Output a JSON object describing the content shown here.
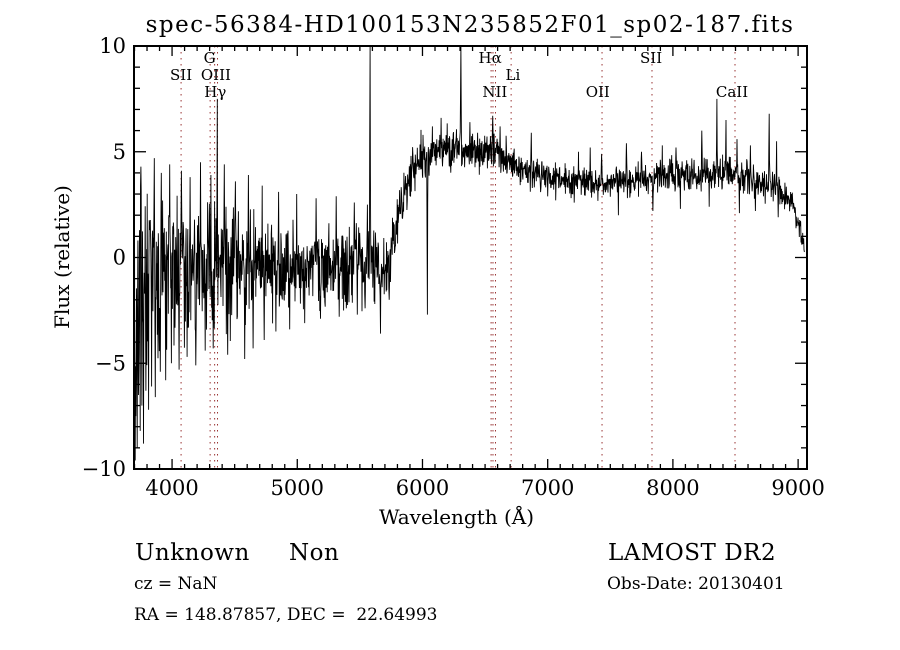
{
  "title": "spec-56384-HD100153N235852F01_sp02-187.fits",
  "footer": {
    "class": "Unknown",
    "subclass": "Non",
    "cz": "cz = NaN",
    "ra_dec": "RA = 148.87857, DEC =  22.64993",
    "survey": "LAMOST DR2",
    "obs_date": "Obs-Date: 20130401"
  },
  "chart_data": {
    "type": "line",
    "title": "spec-56384-HD100153N235852F01_sp02-187.fits",
    "xlabel": "Wavelength (Å)",
    "ylabel": "Flux (relative)",
    "xlim": [
      3696,
      9071
    ],
    "ylim": [
      -10,
      10
    ],
    "grid": false,
    "legend": "none",
    "x_ticks": [
      {
        "v": 4000,
        "label": "4000"
      },
      {
        "v": 5000,
        "label": "5000"
      },
      {
        "v": 6000,
        "label": "6000"
      },
      {
        "v": 7000,
        "label": "7000"
      },
      {
        "v": 8000,
        "label": "8000"
      },
      {
        "v": 9000,
        "label": "9000"
      }
    ],
    "y_ticks": [
      {
        "v": -10,
        "label": "−10"
      },
      {
        "v": -5,
        "label": "−5"
      },
      {
        "v": 0,
        "label": "0"
      },
      {
        "v": 5,
        "label": "5"
      },
      {
        "v": 10,
        "label": "10"
      }
    ],
    "x_minor_step": 100,
    "y_minor_step": 1,
    "trace_color": "#000000",
    "axis_color": "#000000",
    "marker_color": "#993333",
    "line_markers": [
      {
        "label": "SII",
        "row": 2,
        "label_wl": 4072,
        "lines": [
          4072
        ]
      },
      {
        "label": "G",
        "row": 1,
        "label_wl": 4300,
        "lines": [
          4304
        ]
      },
      {
        "label": "OIII",
        "row": 2,
        "label_wl": 4350,
        "lines": [
          4363
        ]
      },
      {
        "label": "Hγ",
        "row": 3,
        "label_wl": 4345,
        "lines": [
          4340
        ]
      },
      {
        "label": "Hα",
        "row": 1,
        "label_wl": 6540,
        "lines": [
          6548,
          6563
        ]
      },
      {
        "label": "NII",
        "row": 3,
        "label_wl": 6578,
        "lines": [
          6583
        ]
      },
      {
        "label": "Li",
        "row": 2,
        "label_wl": 6722,
        "lines": [
          6708
        ]
      },
      {
        "label": "OII",
        "row": 3,
        "label_wl": 7400,
        "lines": [
          7434
        ]
      },
      {
        "label": "SII",
        "row": 1,
        "label_wl": 7826,
        "lines": [
          7833
        ]
      },
      {
        "label": "CaII",
        "row": 3,
        "label_wl": 8472,
        "lines": [
          8496
        ]
      }
    ],
    "spectrum": {
      "start": 3700,
      "end": 9050,
      "samples": 2000,
      "seed": 20130401,
      "continuum": [
        [
          3700,
          0.0
        ],
        [
          4500,
          -0.1
        ],
        [
          5000,
          -0.3
        ],
        [
          5650,
          -0.2
        ],
        [
          5740,
          0.0
        ],
        [
          5800,
          1.8
        ],
        [
          5860,
          3.2
        ],
        [
          5950,
          4.4
        ],
        [
          6050,
          4.8
        ],
        [
          6200,
          5.1
        ],
        [
          6350,
          5.0
        ],
        [
          6500,
          5.0
        ],
        [
          6560,
          5.3
        ],
        [
          6620,
          4.9
        ],
        [
          6750,
          4.3
        ],
        [
          6900,
          3.9
        ],
        [
          7100,
          3.6
        ],
        [
          7500,
          3.5
        ],
        [
          7900,
          3.8
        ],
        [
          8200,
          4.0
        ],
        [
          8450,
          3.9
        ],
        [
          8650,
          3.7
        ],
        [
          8850,
          3.2
        ],
        [
          8950,
          2.6
        ],
        [
          9010,
          1.4
        ],
        [
          9050,
          0.4
        ]
      ],
      "noise_amplitude": [
        [
          3700,
          2.2
        ],
        [
          4000,
          1.8
        ],
        [
          4400,
          1.5
        ],
        [
          4800,
          1.2
        ],
        [
          5200,
          1.05
        ],
        [
          5600,
          0.95
        ],
        [
          5900,
          0.8
        ],
        [
          6300,
          0.7
        ],
        [
          6700,
          0.55
        ],
        [
          7200,
          0.5
        ],
        [
          8000,
          0.55
        ],
        [
          8600,
          0.55
        ],
        [
          9050,
          0.35
        ]
      ],
      "negative_skew": [
        [
          3700,
          1.9
        ],
        [
          4400,
          1.5
        ],
        [
          4800,
          1.3
        ],
        [
          5500,
          1.3
        ],
        [
          5800,
          1.0
        ],
        [
          9050,
          1.0
        ]
      ],
      "spikes": [
        [
          3705,
          -9.6
        ],
        [
          3712,
          -7.5
        ],
        [
          3722,
          -9.0
        ],
        [
          3733,
          -6.5
        ],
        [
          3745,
          -8.2
        ],
        [
          3758,
          -7.0
        ],
        [
          3771,
          -8.8
        ],
        [
          3790,
          -6.3
        ],
        [
          3812,
          -7.2
        ],
        [
          3836,
          -6.1
        ],
        [
          3866,
          -6.6
        ],
        [
          3905,
          -5.4
        ],
        [
          3948,
          -5.8
        ],
        [
          3995,
          -5.0
        ],
        [
          4055,
          -5.3
        ],
        [
          4120,
          -4.7
        ],
        [
          4190,
          -5.1
        ],
        [
          4265,
          -4.4
        ],
        [
          4330,
          -4.3
        ],
        [
          3752,
          4.3
        ],
        [
          3858,
          4.7
        ],
        [
          3915,
          4.0
        ],
        [
          3982,
          4.4
        ],
        [
          4075,
          4.1
        ],
        [
          4145,
          3.8
        ],
        [
          4228,
          4.5
        ],
        [
          4310,
          3.9
        ],
        [
          4360,
          7.5
        ],
        [
          4418,
          4.4
        ],
        [
          4445,
          -4.6
        ],
        [
          4505,
          3.6
        ],
        [
          4580,
          -4.8
        ],
        [
          4610,
          3.9
        ],
        [
          4648,
          -4.3
        ],
        [
          4720,
          3.4
        ],
        [
          4736,
          -3.9
        ],
        [
          4830,
          -3.5
        ],
        [
          4850,
          3.1
        ],
        [
          4938,
          -3.4
        ],
        [
          4995,
          3.0
        ],
        [
          5060,
          -3.1
        ],
        [
          5150,
          2.8
        ],
        [
          5185,
          -2.9
        ],
        [
          5310,
          2.9
        ],
        [
          5335,
          -2.8
        ],
        [
          5455,
          2.6
        ],
        [
          5480,
          -2.7
        ],
        [
          5540,
          -2.4
        ],
        [
          5560,
          2.5
        ],
        [
          5581,
          11.0
        ],
        [
          5620,
          -2.2
        ],
        [
          5665,
          -3.6
        ],
        [
          5735,
          -2.0
        ],
        [
          6040,
          -2.7
        ],
        [
          6150,
          6.6
        ],
        [
          6308,
          11.0
        ],
        [
          6380,
          6.4
        ],
        [
          6560,
          6.7
        ],
        [
          6620,
          6.2
        ],
        [
          6870,
          5.9
        ],
        [
          7245,
          5.0
        ],
        [
          7340,
          5.2
        ],
        [
          7430,
          4.9
        ],
        [
          7565,
          2.0
        ],
        [
          7630,
          5.4
        ],
        [
          7750,
          5.0
        ],
        [
          7840,
          2.2
        ],
        [
          7915,
          5.3
        ],
        [
          8025,
          5.2
        ],
        [
          8060,
          2.3
        ],
        [
          8231,
          6.0
        ],
        [
          8290,
          2.4
        ],
        [
          8351,
          7.5
        ],
        [
          8425,
          6.5
        ],
        [
          8512,
          5.6
        ],
        [
          8530,
          2.1
        ],
        [
          8620,
          5.3
        ],
        [
          8660,
          2.2
        ],
        [
          8769,
          6.8
        ],
        [
          8827,
          5.5
        ],
        [
          8840,
          1.9
        ]
      ]
    }
  }
}
